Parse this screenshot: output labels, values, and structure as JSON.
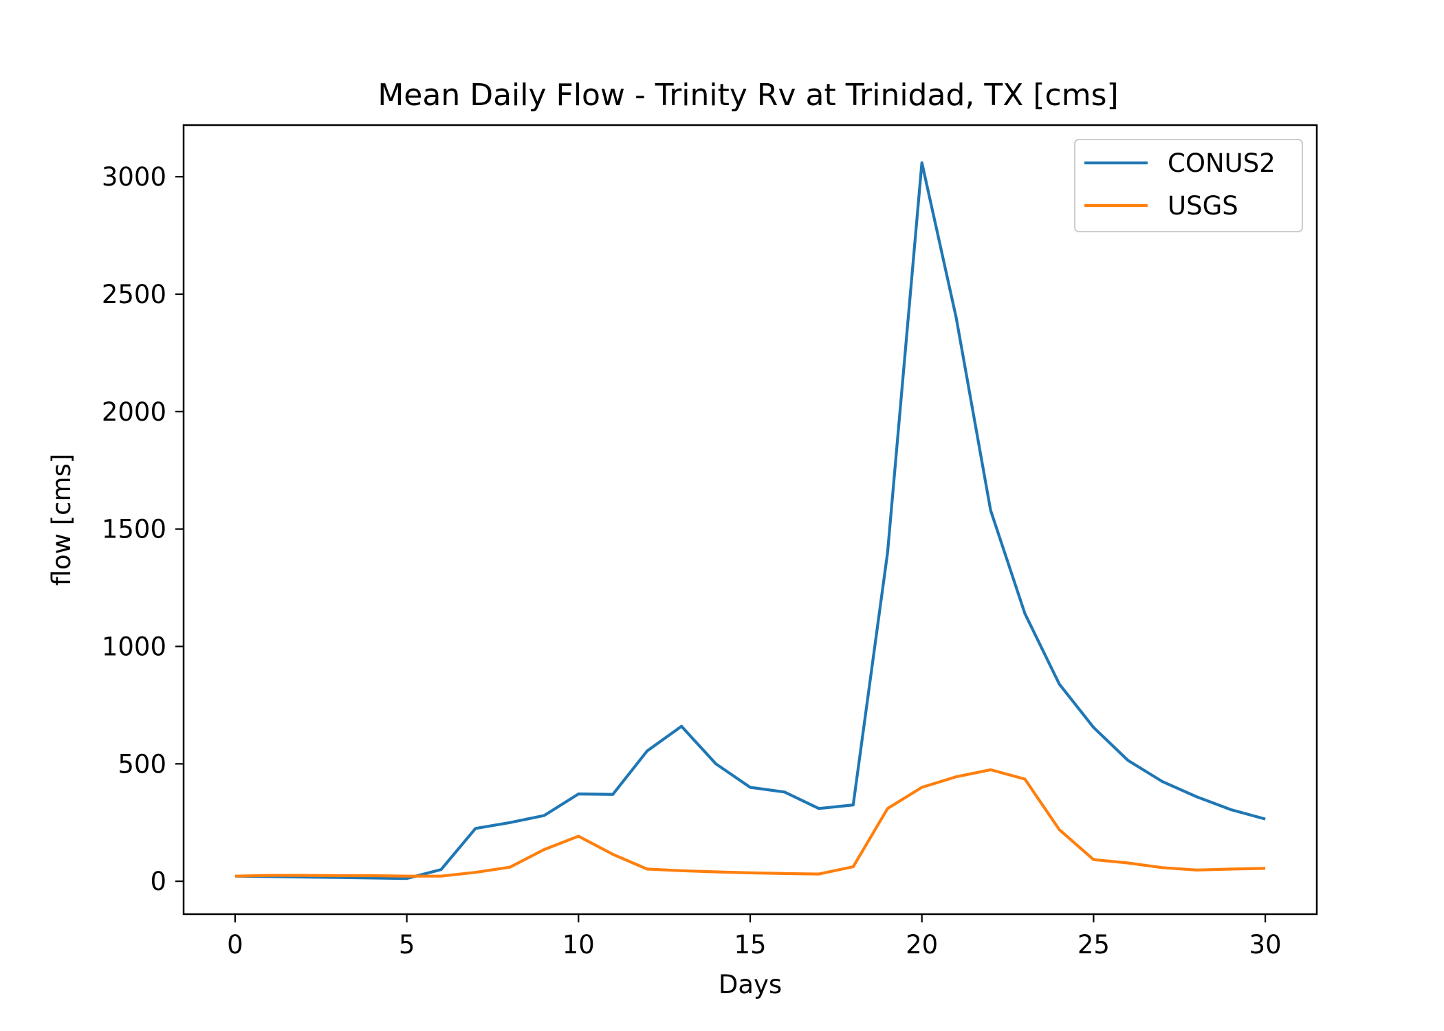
{
  "chart_data": {
    "type": "line",
    "title": "Mean Daily Flow - Trinity Rv at Trinidad, TX [cms]",
    "xlabel": "Days",
    "ylabel": "flow [cms]",
    "xlim": [
      -1.5,
      31.5
    ],
    "ylim": [
      -140,
      3220
    ],
    "xticks": [
      0,
      5,
      10,
      15,
      20,
      25,
      30
    ],
    "yticks": [
      0,
      500,
      1000,
      1500,
      2000,
      2500,
      3000
    ],
    "xtick_labels": [
      "0",
      "5",
      "10",
      "15",
      "20",
      "25",
      "30"
    ],
    "ytick_labels": [
      "0",
      "500",
      "1000",
      "1500",
      "2000",
      "2500",
      "3000"
    ],
    "grid": false,
    "legend_position": "top-right",
    "x": [
      0,
      1,
      2,
      3,
      4,
      5,
      6,
      7,
      8,
      9,
      10,
      11,
      12,
      13,
      14,
      15,
      16,
      17,
      18,
      19,
      20,
      21,
      22,
      23,
      24,
      25,
      26,
      27,
      28,
      29,
      30
    ],
    "series": [
      {
        "name": "CONUS2",
        "color": "#1f77b4",
        "values": [
          22,
          20,
          18,
          16,
          14,
          12,
          50,
          225,
          250,
          280,
          372,
          370,
          555,
          660,
          500,
          400,
          380,
          310,
          325,
          1400,
          3060,
          2400,
          1580,
          1140,
          840,
          655,
          515,
          425,
          360,
          305,
          265
        ]
      },
      {
        "name": "USGS",
        "color": "#ff7f0e",
        "values": [
          22,
          25,
          25,
          24,
          24,
          22,
          22,
          38,
          60,
          135,
          192,
          115,
          52,
          45,
          40,
          36,
          33,
          31,
          62,
          310,
          400,
          445,
          475,
          435,
          220,
          92,
          78,
          58,
          48,
          52,
          55
        ]
      }
    ]
  }
}
